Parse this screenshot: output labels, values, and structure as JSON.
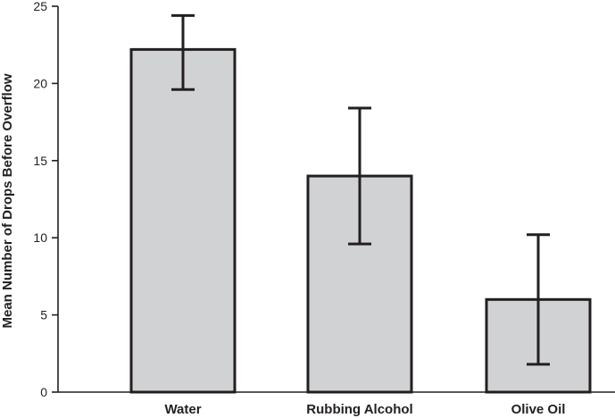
{
  "chart_data": {
    "type": "bar",
    "title": "",
    "xlabel": "",
    "ylabel": "Mean Number of Drops Before Overflow",
    "categories": [
      "Water",
      "Rubbing Alcohol",
      "Olive Oil"
    ],
    "values": [
      22.2,
      14.0,
      6.0
    ],
    "error_upper": [
      24.4,
      18.4,
      10.2
    ],
    "error_lower": [
      19.6,
      9.6,
      1.8
    ],
    "ylim": [
      0,
      25
    ],
    "yticks": [
      0,
      5,
      10,
      15,
      20,
      25
    ],
    "ytick_labels": [
      "0",
      "5",
      "10",
      "15",
      "20",
      "25"
    ],
    "grid": false,
    "colors": {
      "bar_fill": "#d1d2d4",
      "bar_stroke": "#231f20",
      "axis": "#231f20",
      "error_bar": "#231f20"
    }
  }
}
